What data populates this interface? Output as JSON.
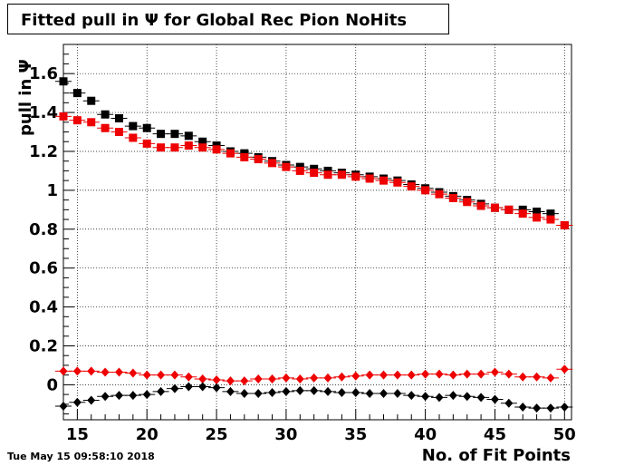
{
  "title": "Fitted pull in  Ψ  for Global Rec Pion NoHits",
  "timestamp": "Tue May 15 09:58:10 2018",
  "chart_data": {
    "type": "scatter",
    "title": "Fitted pull in  Ψ  for Global Rec Pion NoHits",
    "xlabel": "No. of Fit Points",
    "ylabel": "pull in Ψ",
    "xlim": [
      14,
      50.5
    ],
    "ylim": [
      -0.18,
      1.75
    ],
    "grid": true,
    "x_ticks": [
      15,
      20,
      25,
      30,
      35,
      40,
      45,
      50
    ],
    "y_ticks": [
      0,
      0.2,
      0.4,
      0.6,
      0.8,
      1,
      1.2,
      1.4,
      1.6
    ],
    "y_tick_labels": [
      "0",
      "0.2",
      "0.4",
      "0.6",
      "0.8",
      "1",
      "1.2",
      "1.4",
      "1.6"
    ],
    "x": [
      14,
      15,
      16,
      17,
      18,
      19,
      20,
      21,
      22,
      23,
      24,
      25,
      26,
      27,
      28,
      29,
      30,
      31,
      32,
      33,
      34,
      35,
      36,
      37,
      38,
      39,
      40,
      41,
      42,
      43,
      44,
      45,
      46,
      47,
      48,
      49,
      50
    ],
    "series": [
      {
        "marker": "square",
        "color": "#000000",
        "values": [
          1.56,
          1.5,
          1.46,
          1.39,
          1.37,
          1.33,
          1.32,
          1.29,
          1.29,
          1.28,
          1.25,
          1.23,
          1.2,
          1.19,
          1.17,
          1.15,
          1.13,
          1.12,
          1.11,
          1.1,
          1.09,
          1.08,
          1.07,
          1.06,
          1.05,
          1.03,
          1.01,
          0.99,
          0.97,
          0.95,
          0.93,
          0.91,
          0.9,
          0.9,
          0.89,
          0.88,
          0.82
        ]
      },
      {
        "marker": "square",
        "color": "#ee0000",
        "values": [
          1.38,
          1.36,
          1.35,
          1.32,
          1.3,
          1.27,
          1.24,
          1.22,
          1.22,
          1.23,
          1.22,
          1.21,
          1.19,
          1.17,
          1.16,
          1.14,
          1.12,
          1.1,
          1.09,
          1.08,
          1.08,
          1.07,
          1.06,
          1.05,
          1.04,
          1.02,
          1.0,
          0.98,
          0.96,
          0.94,
          0.92,
          0.91,
          0.9,
          0.88,
          0.86,
          0.85,
          0.82
        ]
      },
      {
        "marker": "diamond",
        "color": "#ee0000",
        "values": [
          0.07,
          0.07,
          0.07,
          0.065,
          0.065,
          0.06,
          0.05,
          0.05,
          0.05,
          0.04,
          0.03,
          0.025,
          0.02,
          0.02,
          0.03,
          0.03,
          0.035,
          0.03,
          0.035,
          0.035,
          0.04,
          0.045,
          0.05,
          0.05,
          0.05,
          0.05,
          0.055,
          0.055,
          0.05,
          0.055,
          0.055,
          0.065,
          0.055,
          0.04,
          0.04,
          0.035,
          0.08
        ]
      },
      {
        "marker": "diamond",
        "color": "#000000",
        "values": [
          -0.11,
          -0.09,
          -0.08,
          -0.06,
          -0.055,
          -0.055,
          -0.05,
          -0.035,
          -0.02,
          -0.01,
          -0.01,
          -0.015,
          -0.035,
          -0.045,
          -0.045,
          -0.04,
          -0.035,
          -0.03,
          -0.03,
          -0.035,
          -0.04,
          -0.04,
          -0.045,
          -0.045,
          -0.045,
          -0.055,
          -0.06,
          -0.065,
          -0.055,
          -0.06,
          -0.065,
          -0.075,
          -0.095,
          -0.115,
          -0.12,
          -0.12,
          -0.115
        ]
      }
    ]
  }
}
